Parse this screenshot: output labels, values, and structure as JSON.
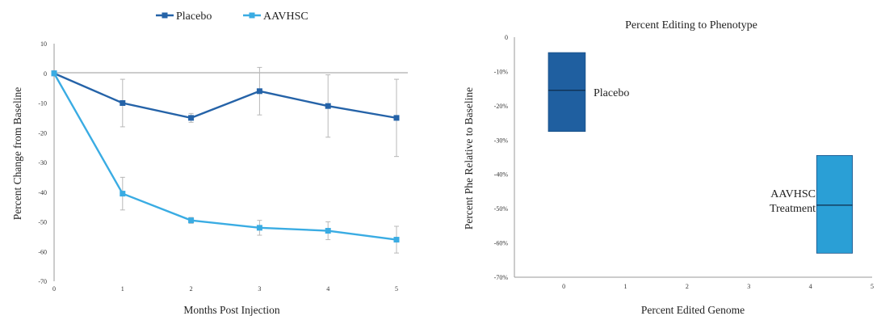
{
  "chart_data": [
    {
      "type": "line",
      "title": "",
      "xlabel": "Months Post Injection",
      "ylabel": "Percent Change from Baseline",
      "xlim": [
        0,
        5
      ],
      "ylim": [
        -70,
        10
      ],
      "x": [
        0,
        1,
        2,
        3,
        4,
        5
      ],
      "xticks": [
        "0",
        "1",
        "2",
        "3",
        "4",
        "5"
      ],
      "yticks": [
        "10",
        "0",
        "-10",
        "-20",
        "-30",
        "-40",
        "-50",
        "-60",
        "-70"
      ],
      "legend_position": "top",
      "grid": false,
      "series": [
        {
          "name": "Placebo",
          "color": "#2563a8",
          "values": [
            0,
            -10,
            -15,
            -6,
            -11,
            -15
          ],
          "err": [
            0,
            8,
            1.5,
            8,
            10.5,
            13
          ]
        },
        {
          "name": "AAVHSC",
          "color": "#3aace3",
          "values": [
            0,
            -40.5,
            -49.5,
            -52,
            -53,
            -56
          ],
          "err": [
            0,
            5.5,
            1,
            2.5,
            3,
            4.5
          ]
        }
      ]
    },
    {
      "type": "box",
      "title": "Percent Editing to Phenotype",
      "xlabel": "Percent Edited Genome",
      "ylabel": "Percent Phe Relative to Baseline",
      "xlim": [
        -0.8,
        5
      ],
      "ylim": [
        -70,
        0
      ],
      "xticks": [
        "0",
        "1",
        "2",
        "3",
        "4",
        "5"
      ],
      "yticks": [
        "0",
        "-10%",
        "-20%",
        "-30%",
        "-40%",
        "-50%",
        "-60%",
        "-70%"
      ],
      "grid": false,
      "boxes": [
        {
          "label": "Placebo",
          "x_range": [
            -0.25,
            0.35
          ],
          "low": -27.5,
          "high": -4.5,
          "median": -15.5,
          "color": "#1f5fa0"
        },
        {
          "label_line1": "AAVHSC",
          "label_line2": "Treatment",
          "x_range": [
            4.1,
            4.68
          ],
          "low": -63,
          "high": -34.5,
          "median": -49,
          "color": "#2a9fd6"
        }
      ]
    }
  ]
}
